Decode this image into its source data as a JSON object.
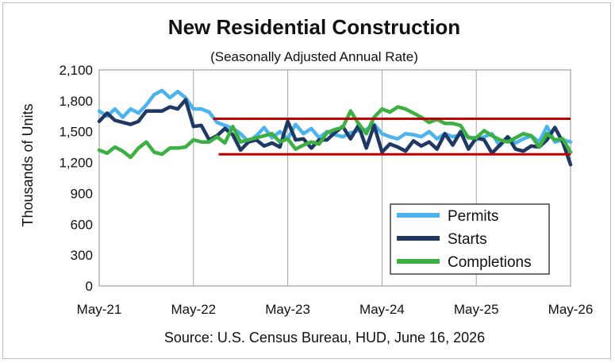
{
  "chart_data": {
    "type": "line",
    "title": "New Residential Construction",
    "subtitle": "(Seasonally Adjusted Annual Rate)",
    "ylabel": "Thousands of Units",
    "xlabel": "",
    "source": "Source:  U.S. Census Bureau, HUD, June 16, 2026",
    "ylim": [
      0,
      2100
    ],
    "yticks": [
      "0",
      "300",
      "600",
      "900",
      "1,200",
      "1,500",
      "1,800",
      "2,100"
    ],
    "ytick_values": [
      0,
      300,
      600,
      900,
      1200,
      1500,
      1800,
      2100
    ],
    "xlim": [
      0,
      60
    ],
    "xticks": [
      "May-21",
      "May-22",
      "May-23",
      "May-24",
      "May-25",
      "May-26"
    ],
    "xtick_values": [
      0,
      12,
      24,
      36,
      48,
      60
    ],
    "grid": "vertical",
    "legend": "bottom-right",
    "series": [
      {
        "name": "Permits",
        "color": "#4db3ec",
        "values": [
          1700,
          1650,
          1720,
          1640,
          1720,
          1680,
          1760,
          1860,
          1900,
          1830,
          1890,
          1830,
          1720,
          1720,
          1690,
          1590,
          1560,
          1530,
          1480,
          1400,
          1460,
          1540,
          1440,
          1500,
          1430,
          1570,
          1480,
          1530,
          1440,
          1500,
          1470,
          1450,
          1490,
          1510,
          1520,
          1570,
          1480,
          1450,
          1430,
          1480,
          1470,
          1450,
          1500,
          1430,
          1480,
          1450,
          1470,
          1450,
          1420,
          1450,
          1480,
          1360,
          1450,
          1390,
          1430,
          1460,
          1400,
          1550,
          1400,
          1420,
          1400
        ]
      },
      {
        "name": "Starts",
        "color": "#1f3864",
        "values": [
          1600,
          1680,
          1610,
          1590,
          1570,
          1600,
          1700,
          1700,
          1700,
          1740,
          1720,
          1810,
          1550,
          1560,
          1420,
          1460,
          1530,
          1470,
          1320,
          1400,
          1420,
          1360,
          1390,
          1350,
          1600,
          1420,
          1430,
          1340,
          1420,
          1420,
          1490,
          1550,
          1430,
          1560,
          1340,
          1560,
          1300,
          1380,
          1350,
          1310,
          1410,
          1360,
          1400,
          1330,
          1480,
          1370,
          1500,
          1330,
          1440,
          1420,
          1290,
          1370,
          1450,
          1330,
          1310,
          1360,
          1350,
          1420,
          1540,
          1400,
          1180
        ]
      },
      {
        "name": "Completions",
        "color": "#3cb043",
        "values": [
          1320,
          1290,
          1350,
          1310,
          1250,
          1340,
          1400,
          1300,
          1280,
          1340,
          1340,
          1350,
          1420,
          1400,
          1400,
          1450,
          1390,
          1550,
          1400,
          1420,
          1440,
          1460,
          1480,
          1400,
          1430,
          1330,
          1370,
          1400,
          1380,
          1490,
          1520,
          1540,
          1700,
          1580,
          1480,
          1640,
          1720,
          1690,
          1740,
          1720,
          1680,
          1640,
          1590,
          1620,
          1580,
          1580,
          1560,
          1440,
          1440,
          1510,
          1460,
          1420,
          1400,
          1440,
          1480,
          1460,
          1350,
          1480,
          1420,
          1430,
          1300
        ]
      }
    ],
    "annotations": [
      {
        "type": "hline",
        "color": "#c00000",
        "y": 1625,
        "x_start": 14.5,
        "x_end": 60
      },
      {
        "type": "hline",
        "color": "#c00000",
        "y": 1280,
        "x_start": 15.2,
        "x_end": 60
      }
    ]
  }
}
